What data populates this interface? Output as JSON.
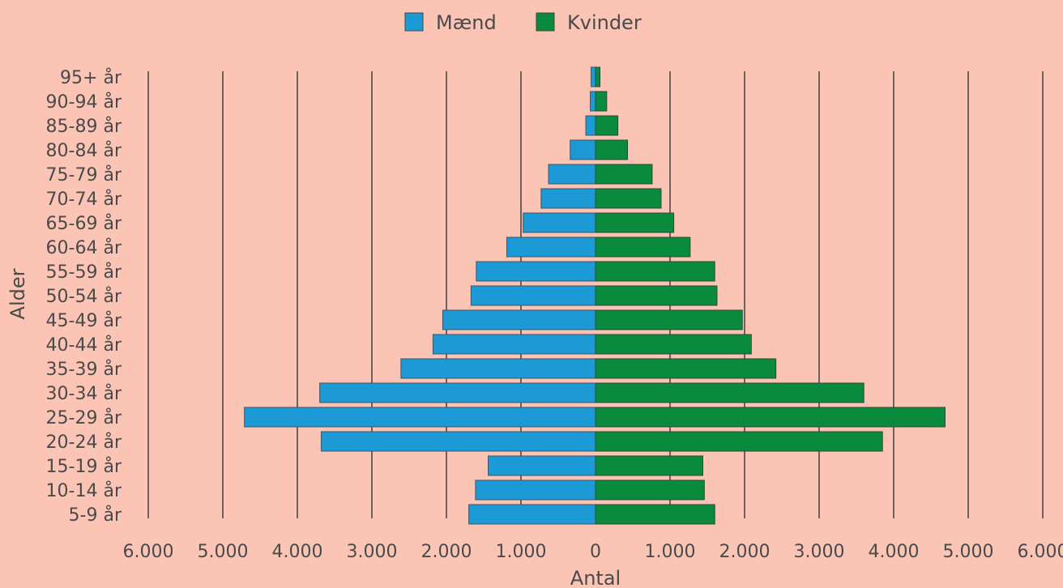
{
  "chart_data": {
    "type": "bar",
    "orientation": "horizontal",
    "layout": "population-pyramid",
    "title": "",
    "xlabel": "Antal",
    "ylabel": "Alder",
    "xlim": [
      -6000,
      6000
    ],
    "x_tick_labels": [
      "6.000",
      "5.000",
      "4.000",
      "3.000",
      "2.000",
      "1.000",
      "0",
      "1.000",
      "2.000",
      "3.000",
      "4.000",
      "5.000",
      "6.000"
    ],
    "grid": "vertical",
    "legend_position": "top-center",
    "categories": [
      "95+ år",
      "90-94 år",
      "85-89 år",
      "80-84 år",
      "75-79 år",
      "70-74 år",
      "65-69 år",
      "60-64 år",
      "55-59 år",
      "50-54 år",
      "45-49 år",
      "40-44 år",
      "35-39 år",
      "30-34 år",
      "25-29 år",
      "20-24 år",
      "15-19 år",
      "10-14 år",
      "5-9 år"
    ],
    "series": [
      {
        "name": "Mænd",
        "side": "left",
        "color": "#1b9ad6",
        "values": [
          60,
          70,
          130,
          340,
          630,
          730,
          970,
          1190,
          1600,
          1670,
          2050,
          2180,
          2610,
          3700,
          4710,
          3680,
          1440,
          1610,
          1700
        ]
      },
      {
        "name": "Kvinder",
        "side": "right",
        "color": "#0a8a3c",
        "values": [
          60,
          150,
          300,
          430,
          760,
          880,
          1050,
          1270,
          1600,
          1630,
          1970,
          2090,
          2420,
          3600,
          4690,
          3850,
          1440,
          1460,
          1600
        ]
      }
    ]
  }
}
